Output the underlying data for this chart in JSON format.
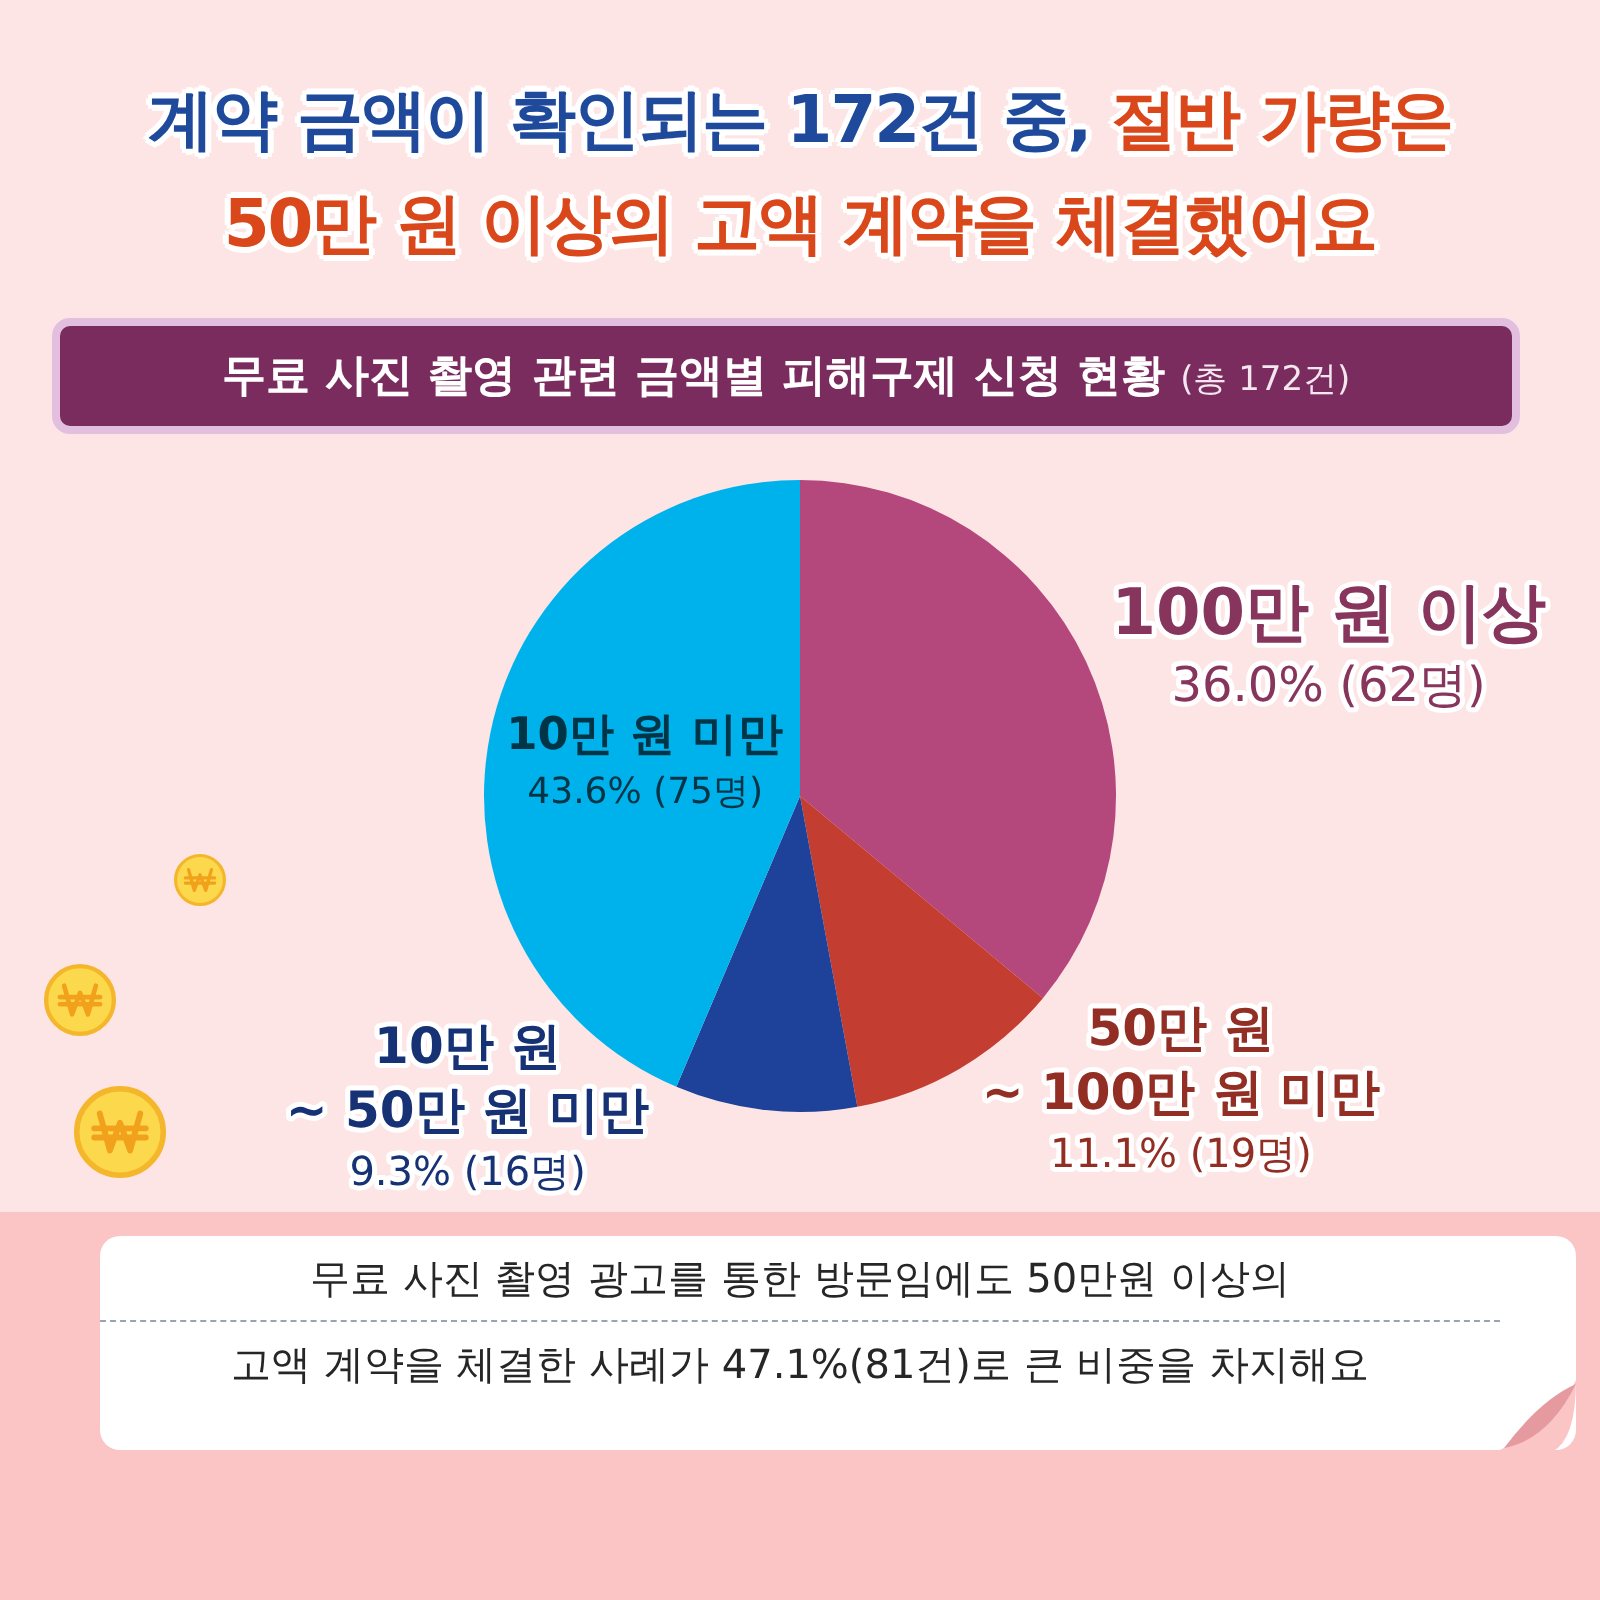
{
  "chart_data": {
    "type": "pie",
    "title": "계약 금액이 확인되는 172건 중, 절반 가량은\n50만 원 이상의 고액 계약을 체결했어요",
    "subtitle": "무료 사진 촬영 관련 금액별 피해구제 신청 현황 (총 172건)",
    "categories": [
      "100만 원 이상",
      "50만 원\n~ 100만 원 미만",
      "10만 원\n~ 50만 원 미만",
      "10만 원 미만"
    ],
    "values": [
      62,
      19,
      16,
      75
    ],
    "value_labels": [
      "36.0% (62명)",
      "11.1% (19명)",
      "9.3% (16명)",
      "43.6% (75명)"
    ],
    "colors": [
      "#b4477b",
      "#c43d31",
      "#1e429a",
      "#00b2ec"
    ],
    "annotations": [
      "무료 사진 촬영 광고를 통한 방문임에도 50만원 이상의",
      "고액 계약을 체결한 사례가 47.1%(81건)로 큰 비중을 차지해요"
    ]
  }
}
